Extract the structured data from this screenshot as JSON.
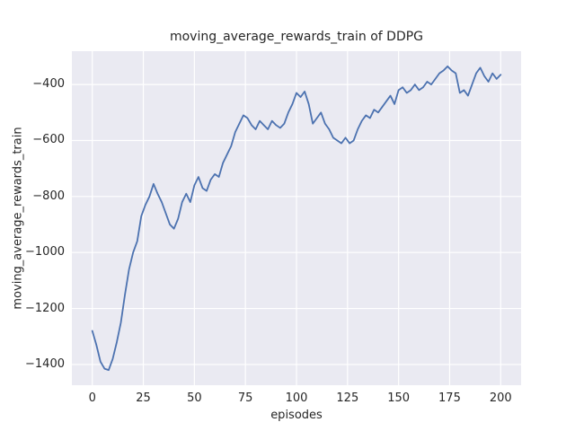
{
  "chart_data": {
    "type": "line",
    "title": "moving_average_rewards_train of DDPG",
    "xlabel": "episodes",
    "ylabel": "moving_average_rewards_train",
    "xlim": [
      -10,
      210
    ],
    "ylim": [
      -1474,
      -281
    ],
    "xticks": [
      0,
      25,
      50,
      75,
      100,
      125,
      150,
      175,
      200
    ],
    "yticks": [
      -400,
      -600,
      -800,
      -1000,
      -1200,
      -1400
    ],
    "grid": true,
    "legend_position": "none",
    "style": {
      "axes_background": "#eaeaf2",
      "grid_color": "#ffffff",
      "line_color": "#4c72b0",
      "text_color": "#262626",
      "figure_background": "#ffffff"
    },
    "series": [
      {
        "name": "moving_average_rewards_train",
        "x": [
          0,
          2,
          4,
          6,
          8,
          10,
          12,
          14,
          16,
          18,
          20,
          22,
          24,
          26,
          28,
          30,
          32,
          34,
          36,
          38,
          40,
          42,
          44,
          46,
          48,
          50,
          52,
          54,
          56,
          58,
          60,
          62,
          64,
          66,
          68,
          70,
          72,
          74,
          76,
          78,
          80,
          82,
          84,
          86,
          88,
          90,
          92,
          94,
          96,
          98,
          100,
          102,
          104,
          106,
          108,
          110,
          112,
          114,
          116,
          118,
          120,
          122,
          124,
          126,
          128,
          130,
          132,
          134,
          136,
          138,
          140,
          142,
          144,
          146,
          148,
          150,
          152,
          154,
          156,
          158,
          160,
          162,
          164,
          166,
          168,
          170,
          172,
          174,
          176,
          178,
          180,
          182,
          184,
          186,
          188,
          190,
          192,
          194,
          196,
          198,
          200
        ],
        "y": [
          -1280,
          -1330,
          -1390,
          -1415,
          -1420,
          -1380,
          -1320,
          -1250,
          -1150,
          -1060,
          -1000,
          -960,
          -870,
          -830,
          -800,
          -755,
          -790,
          -820,
          -860,
          -900,
          -915,
          -880,
          -820,
          -790,
          -820,
          -760,
          -730,
          -770,
          -780,
          -740,
          -720,
          -730,
          -680,
          -650,
          -620,
          -570,
          -540,
          -510,
          -520,
          -545,
          -560,
          -530,
          -545,
          -560,
          -530,
          -545,
          -555,
          -540,
          -500,
          -470,
          -430,
          -445,
          -425,
          -470,
          -540,
          -520,
          -500,
          -540,
          -560,
          -590,
          -600,
          -610,
          -590,
          -610,
          -600,
          -560,
          -530,
          -510,
          -520,
          -490,
          -500,
          -480,
          -460,
          -440,
          -470,
          -420,
          -410,
          -430,
          -420,
          -400,
          -420,
          -410,
          -390,
          -400,
          -380,
          -360,
          -350,
          -335,
          -350,
          -360,
          -430,
          -420,
          -440,
          -400,
          -360,
          -340,
          -370,
          -390,
          -360,
          -380,
          -365
        ]
      }
    ]
  }
}
